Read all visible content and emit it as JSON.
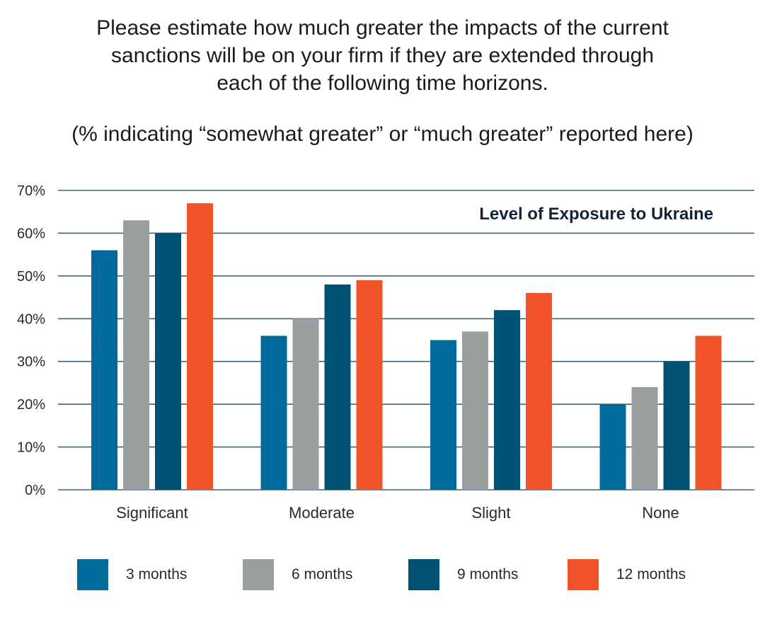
{
  "chart_data": {
    "type": "bar",
    "title_lines": [
      "Please estimate how much greater the impacts of the current",
      "sanctions will be on your firm if they are extended through",
      "each of the following time horizons."
    ],
    "subtitle": "(% indicating “somewhat greater” or “much greater” reported here)",
    "annotation": "Level of Exposure to Ukraine",
    "xlabel": "",
    "ylabel": "",
    "categories": [
      "Significant",
      "Moderate",
      "Slight",
      "None"
    ],
    "series": [
      {
        "name": "3 months",
        "color": "#006b9a",
        "values": [
          56,
          36,
          35,
          20
        ]
      },
      {
        "name": "6 months",
        "color": "#9aa09f",
        "values": [
          63,
          40,
          37,
          24
        ]
      },
      {
        "name": "9 months",
        "color": "#005274",
        "values": [
          60,
          48,
          42,
          30
        ]
      },
      {
        "name": "12 months",
        "color": "#f05327",
        "values": [
          67,
          49,
          46,
          36
        ]
      }
    ],
    "ylim": [
      0,
      70
    ],
    "yticks": [
      0,
      10,
      20,
      30,
      40,
      50,
      60,
      70
    ],
    "ytick_labels": [
      "0%",
      "10%",
      "20%",
      "30%",
      "40%",
      "50%",
      "60%",
      "70%"
    ],
    "grid": true,
    "gridline_color": "#3f6478",
    "legend_position": "bottom"
  }
}
